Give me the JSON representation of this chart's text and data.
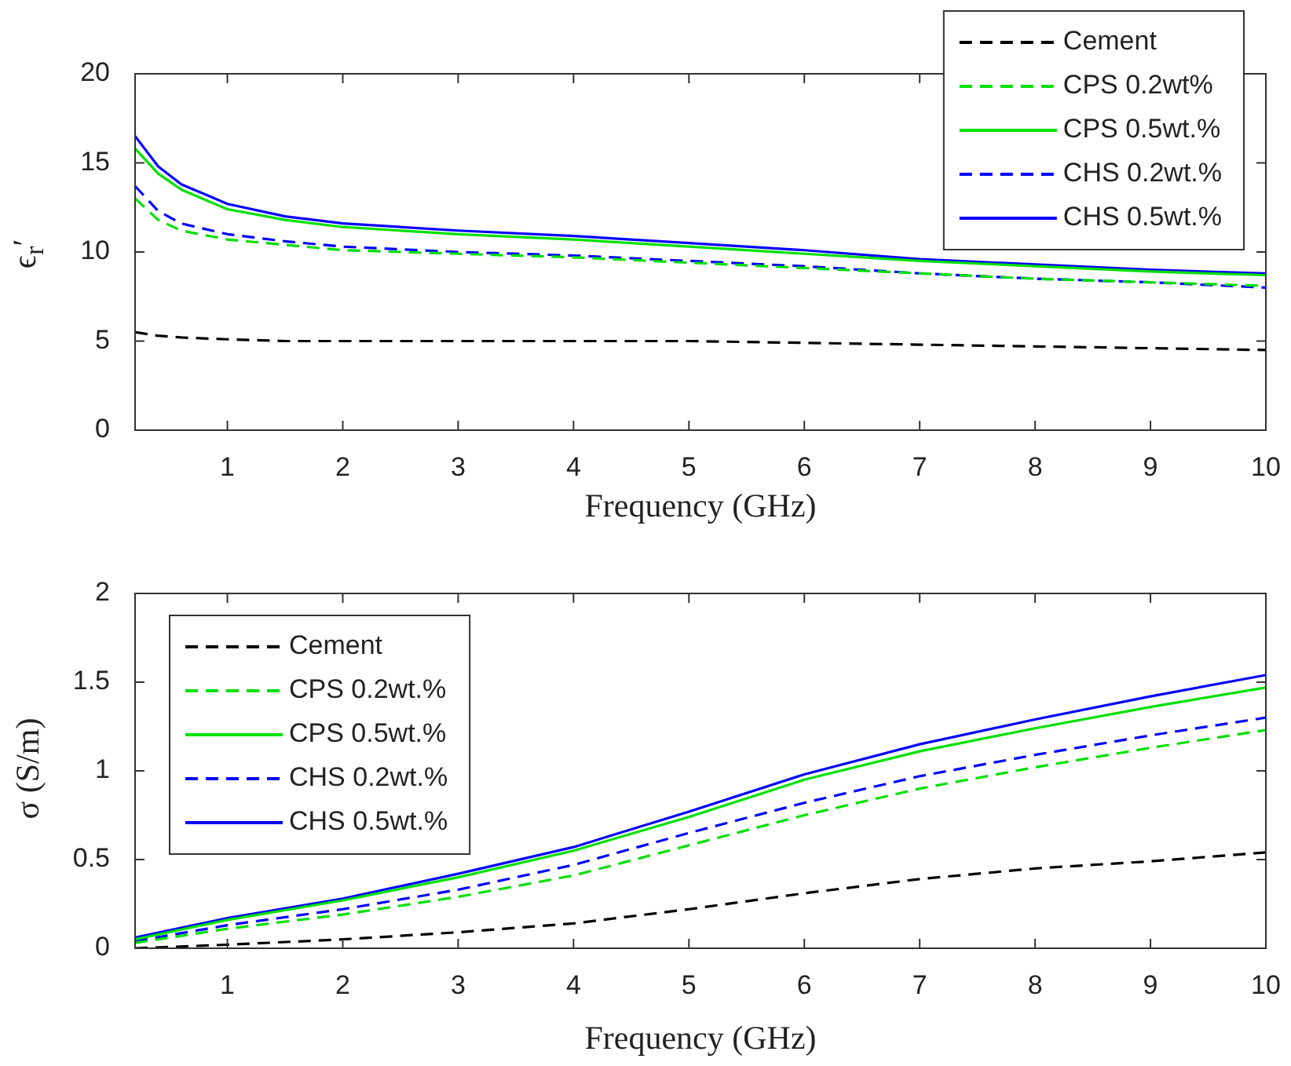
{
  "chart_data": [
    {
      "type": "line",
      "xlabel": "Frequency (GHz)",
      "ylabel": "ϵ$_{r}$′",
      "x": [
        0.2,
        0.4,
        0.6,
        1,
        1.5,
        2,
        3,
        4,
        5,
        6,
        7,
        8,
        9,
        10
      ],
      "xlim": [
        0.2,
        10
      ],
      "xticks": [
        1,
        2,
        3,
        4,
        5,
        6,
        7,
        8,
        9,
        10
      ],
      "ylim": [
        0,
        20
      ],
      "yticks": [
        0,
        5,
        10,
        15,
        20
      ],
      "grid": false,
      "legend": "top right",
      "marker": "none",
      "series": [
        {
          "name": "Cement",
          "color": "#000000",
          "line_style": "dashed",
          "values": [
            5.5,
            5.3,
            5.2,
            5.1,
            5.0,
            5.0,
            5.0,
            5.0,
            5.0,
            4.9,
            4.8,
            4.7,
            4.6,
            4.5
          ]
        },
        {
          "name": "CPS 0.2wt%",
          "color": "#00e000",
          "line_style": "dashed",
          "values": [
            13.0,
            11.8,
            11.2,
            10.7,
            10.4,
            10.1,
            9.9,
            9.7,
            9.4,
            9.1,
            8.8,
            8.5,
            8.3,
            8.1
          ]
        },
        {
          "name": "CPS 0.5wt.%",
          "color": "#00e000",
          "line_style": "solid",
          "values": [
            15.8,
            14.4,
            13.5,
            12.4,
            11.8,
            11.4,
            11.0,
            10.7,
            10.3,
            9.9,
            9.5,
            9.2,
            8.9,
            8.7
          ]
        },
        {
          "name": "CHS 0.2wt.%",
          "color": "#0000ff",
          "line_style": "dashed",
          "values": [
            13.7,
            12.3,
            11.6,
            11.0,
            10.6,
            10.3,
            10.0,
            9.8,
            9.5,
            9.2,
            8.8,
            8.5,
            8.3,
            8.0
          ]
        },
        {
          "name": "CHS 0.5wt.%",
          "color": "#0000ff",
          "line_style": "solid",
          "values": [
            16.5,
            14.8,
            13.8,
            12.7,
            12.0,
            11.6,
            11.2,
            10.9,
            10.5,
            10.1,
            9.6,
            9.3,
            9.0,
            8.8
          ]
        }
      ]
    },
    {
      "type": "line",
      "xlabel": "Frequency (GHz)",
      "ylabel": "σ (S/m)",
      "x": [
        0.2,
        1,
        2,
        3,
        4,
        5,
        6,
        7,
        8,
        9,
        10
      ],
      "xlim": [
        0.2,
        10
      ],
      "xticks": [
        1,
        2,
        3,
        4,
        5,
        6,
        7,
        8,
        9,
        10
      ],
      "ylim": [
        0,
        2
      ],
      "yticks": [
        0,
        0.5,
        1,
        1.5,
        2
      ],
      "grid": false,
      "legend": "top left",
      "marker": "none",
      "series": [
        {
          "name": "Cement",
          "color": "#000000",
          "line_style": "dashed",
          "values": [
            0.0,
            0.02,
            0.05,
            0.09,
            0.14,
            0.22,
            0.31,
            0.39,
            0.45,
            0.49,
            0.54
          ]
        },
        {
          "name": "CPS 0.2wt.%",
          "color": "#00e000",
          "line_style": "dashed",
          "values": [
            0.03,
            0.11,
            0.19,
            0.29,
            0.41,
            0.58,
            0.75,
            0.9,
            1.02,
            1.13,
            1.23
          ]
        },
        {
          "name": "CPS 0.5wt.%",
          "color": "#00e000",
          "line_style": "solid",
          "values": [
            0.05,
            0.16,
            0.27,
            0.4,
            0.55,
            0.74,
            0.95,
            1.11,
            1.24,
            1.36,
            1.47
          ]
        },
        {
          "name": "CHS 0.2wt.%",
          "color": "#0000ff",
          "line_style": "dashed",
          "values": [
            0.04,
            0.13,
            0.22,
            0.33,
            0.47,
            0.65,
            0.82,
            0.97,
            1.09,
            1.2,
            1.3
          ]
        },
        {
          "name": "CHS 0.5wt.%",
          "color": "#0000ff",
          "line_style": "solid",
          "values": [
            0.06,
            0.17,
            0.28,
            0.42,
            0.57,
            0.77,
            0.98,
            1.15,
            1.29,
            1.42,
            1.54
          ]
        }
      ]
    }
  ]
}
